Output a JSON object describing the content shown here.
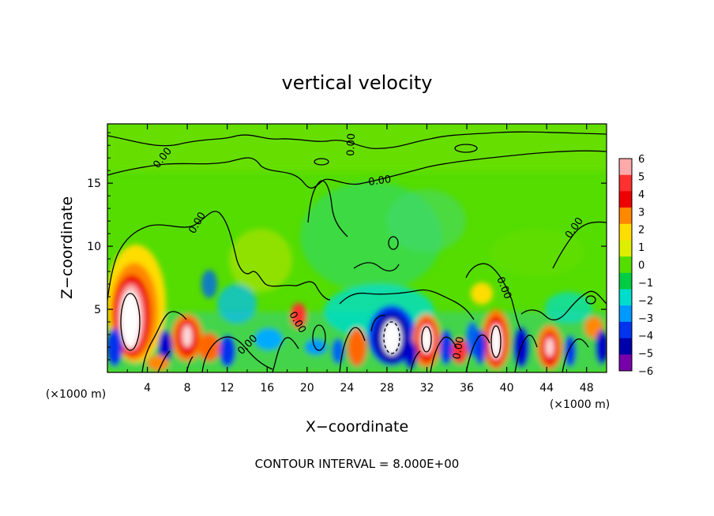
{
  "chart_data": {
    "type": "heatmap",
    "title": "vertical velocity",
    "xlabel": "X−coordinate",
    "ylabel": "Z−coordinate",
    "x_unit": "(×1000 m)",
    "y_unit": "(×1000 m)",
    "xlim": [
      0,
      50
    ],
    "ylim": [
      0,
      19.7
    ],
    "x_ticks": [
      4,
      8,
      12,
      16,
      20,
      24,
      28,
      32,
      36,
      40,
      44,
      48
    ],
    "x_tick_labels": [
      "4",
      "8",
      "12",
      "16",
      "20",
      "24",
      "28",
      "32",
      "36",
      "40",
      "44",
      "48"
    ],
    "y_ticks": [
      5,
      10,
      15
    ],
    "y_tick_labels": [
      "5",
      "10",
      "15"
    ],
    "colorbar": {
      "levels": [
        6,
        5,
        4,
        3,
        2,
        1,
        0,
        -1,
        -2,
        -3,
        -4,
        -5,
        -6
      ],
      "labels": [
        "6",
        "5",
        "4",
        "3",
        "2",
        "1",
        "0",
        "−1",
        "−2",
        "−3",
        "−4",
        "−5",
        "−6"
      ],
      "colors": [
        "#ffaaaa",
        "#ff3030",
        "#ee0000",
        "#ff8800",
        "#ffdd00",
        "#ddee00",
        "#55dd00",
        "#00cc44",
        "#00ddcc",
        "#0099ff",
        "#0033ee",
        "#0000aa",
        "#7700aa"
      ]
    },
    "contour_labels": [
      "0.00",
      "0.00",
      "0.00",
      "0.00",
      "0.00",
      "0.00",
      "0.00",
      "0.00",
      "0.00"
    ],
    "contour_interval_text": "CONTOUR INTERVAL =  8.000E+00",
    "features": [
      {
        "x": 3.0,
        "z": 4.5,
        "w": 6
      },
      {
        "x": 8.0,
        "z": 3.0,
        "w": 5
      },
      {
        "x": 10.0,
        "z": 2.0,
        "w": 3
      },
      {
        "x": 28.5,
        "z": 3.0,
        "w": -6
      },
      {
        "x": 32.0,
        "z": 2.6,
        "w": 6
      },
      {
        "x": 38.8,
        "z": 2.5,
        "w": 6
      },
      {
        "x": 44.0,
        "z": 2.0,
        "w": 5
      },
      {
        "x": 19.0,
        "z": 4.5,
        "w": 4
      }
    ]
  }
}
